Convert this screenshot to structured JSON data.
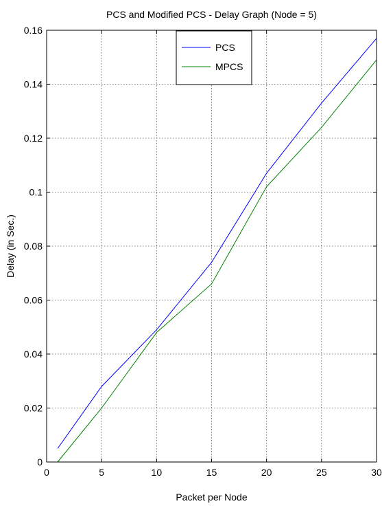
{
  "chart_data": {
    "type": "line",
    "title": "PCS and Modified PCS - Delay Graph (Node = 5)",
    "xlabel": "Packet per Node",
    "ylabel": "Delay (in Sec.)",
    "xlim": [
      0,
      30
    ],
    "ylim": [
      0,
      0.16
    ],
    "x_ticks": [
      0,
      5,
      10,
      15,
      20,
      25,
      30
    ],
    "x_tick_labels": [
      "0",
      "5",
      "10",
      "15",
      "20",
      "25",
      "30"
    ],
    "y_ticks": [
      0,
      0.02,
      0.04,
      0.06,
      0.08,
      0.1,
      0.12,
      0.14,
      0.16
    ],
    "y_tick_labels": [
      "0",
      "0.02",
      "0.04",
      "0.06",
      "0.08",
      "0.1",
      "0.12",
      "0.14",
      "0.16"
    ],
    "grid": true,
    "legend_position": "top-center",
    "x": [
      1,
      5,
      10,
      15,
      20,
      25,
      30
    ],
    "series": [
      {
        "name": "PCS",
        "color": "#0000ff",
        "values": [
          0.005,
          0.028,
          0.049,
          0.074,
          0.107,
          0.133,
          0.157
        ]
      },
      {
        "name": "MPCS",
        "color": "#008000",
        "values": [
          0.0,
          0.02,
          0.048,
          0.066,
          0.102,
          0.124,
          0.149
        ]
      }
    ]
  }
}
